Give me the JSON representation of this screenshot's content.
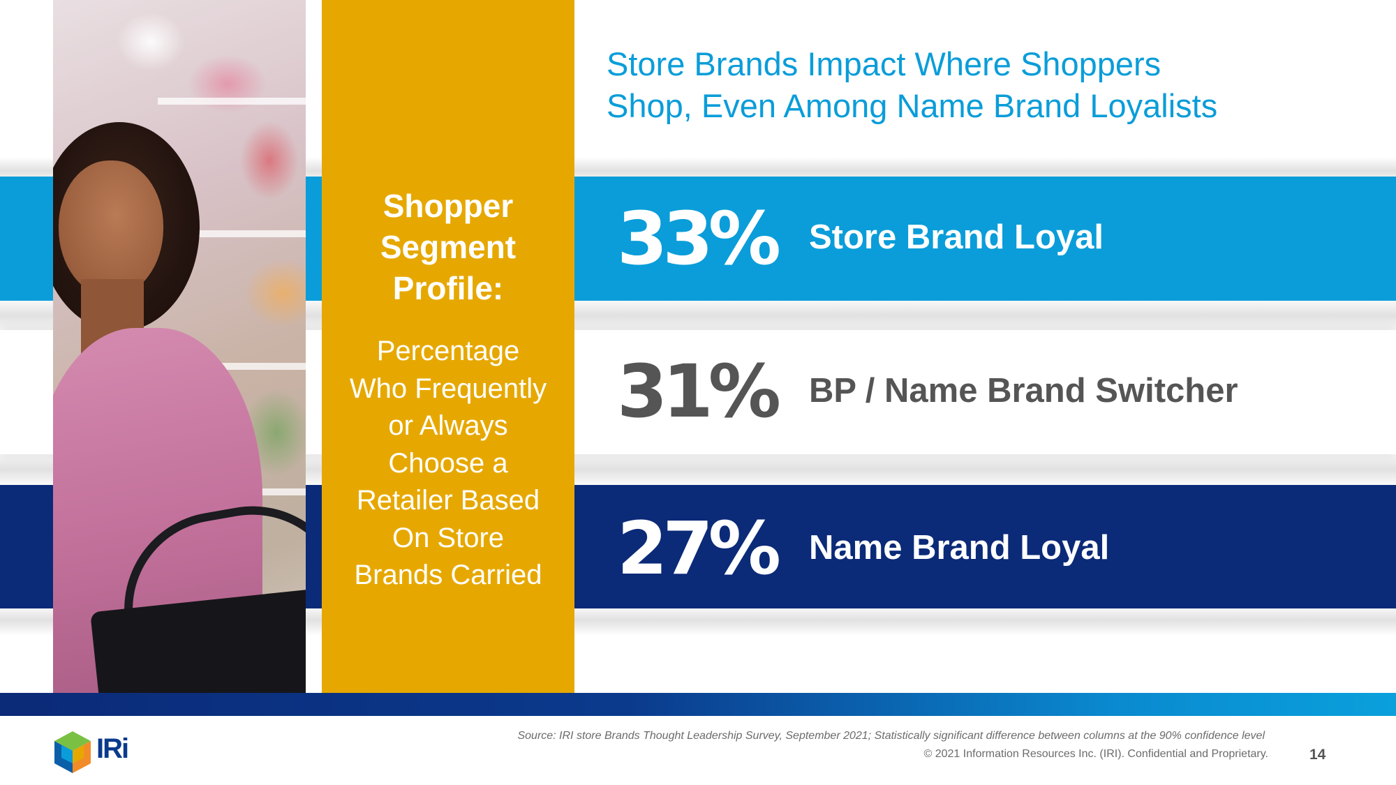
{
  "title_line1": "Store Brands Impact Where Shoppers",
  "title_line2": "Shop, Even Among Name Brand Loyalists",
  "panel": {
    "heading_lines": [
      "Shopper",
      "Segment",
      "Profile:"
    ],
    "body_lines": [
      "Percentage",
      "Who Frequently",
      "or Always",
      "Choose a",
      "Retailer Based",
      "On Store",
      "Brands Carried"
    ]
  },
  "stats": [
    {
      "value": "33%",
      "label": "Store Brand Loyal",
      "band_color": "#0a9dd9",
      "text_color": "#ffffff"
    },
    {
      "value": "31%",
      "label": "BP / Name Brand Switcher",
      "band_color": "#ffffff",
      "text_color": "#555555"
    },
    {
      "value": "27%",
      "label": "Name Brand Loyal",
      "band_color": "#0b2a78",
      "text_color": "#ffffff"
    }
  ],
  "footer": {
    "logo_text": "IRi",
    "source": "Source: IRI store Brands Thought Leadership Survey, September 2021; Statistically significant difference between columns at the 90% confidence level",
    "copyright": "© 2021 Information Resources Inc. (IRI). Confidential and Proprietary.",
    "page_number": "14"
  },
  "colors": {
    "accent_blue": "#0a9dd9",
    "navy": "#0b2a78",
    "gold": "#e6a800"
  }
}
